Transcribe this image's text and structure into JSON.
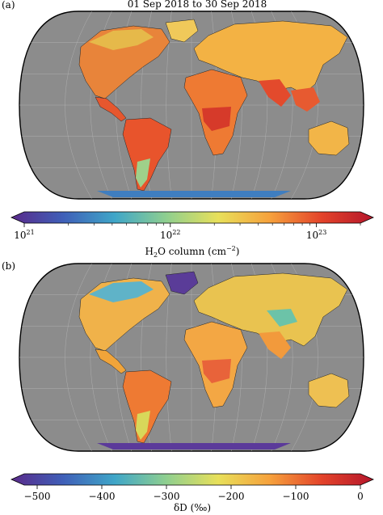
{
  "panel_a": {
    "label": "(a)",
    "title": "01 Sep 2018 to 30 Sep 2018",
    "colorbar": {
      "ticks": [
        {
          "base": "10",
          "exp": "21"
        },
        {
          "base": "10",
          "exp": "22"
        },
        {
          "base": "10",
          "exp": "23"
        }
      ],
      "label_parts": [
        "H",
        "2",
        "O column (cm",
        "−2",
        ")"
      ],
      "scale": "log",
      "range": [
        1e+21,
        2e+23
      ],
      "colors": [
        "#5a2a8a",
        "#3f5fb8",
        "#3fa6c8",
        "#8fcf8f",
        "#e8e05a",
        "#f6a13c",
        "#e3432a",
        "#b5162b"
      ]
    },
    "colorbar_label_text": "H2O column (cm−2)"
  },
  "panel_b": {
    "label": "(b)",
    "colorbar": {
      "ticks": [
        "−500",
        "−400",
        "−300",
        "−200",
        "−100",
        "0"
      ],
      "label": "δD (‰)",
      "range": [
        -520,
        0
      ],
      "colors": [
        "#5a2a8a",
        "#3f5fb8",
        "#3fa6c8",
        "#8fcf8f",
        "#e8e05a",
        "#f6a13c",
        "#e3432a",
        "#b5162b"
      ]
    }
  },
  "map": {
    "ocean_color": "#8c8c8c",
    "projection": "Robinson",
    "graticule": true
  }
}
